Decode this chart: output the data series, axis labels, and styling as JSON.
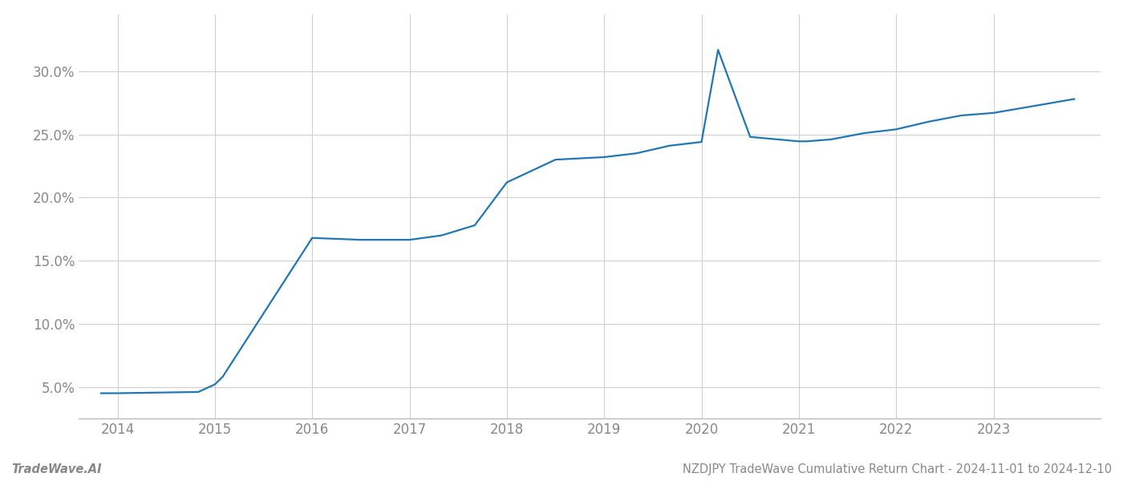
{
  "x_years": [
    2013.83,
    2014.0,
    2014.83,
    2015.0,
    2015.08,
    2016.0,
    2016.5,
    2017.0,
    2017.33,
    2017.67,
    2018.0,
    2018.5,
    2019.0,
    2019.33,
    2019.67,
    2020.0,
    2020.17,
    2020.5,
    2021.0,
    2021.08,
    2021.33,
    2021.67,
    2022.0,
    2022.33,
    2022.67,
    2023.0,
    2023.83
  ],
  "y_values": [
    4.5,
    4.5,
    4.6,
    5.2,
    5.8,
    16.8,
    16.65,
    16.65,
    17.0,
    17.8,
    21.2,
    23.0,
    23.2,
    23.5,
    24.1,
    24.4,
    31.7,
    24.8,
    24.45,
    24.45,
    24.6,
    25.1,
    25.4,
    26.0,
    26.5,
    26.7,
    27.8
  ],
  "line_color": "#1f77b4",
  "line_width": 1.6,
  "background_color": "#ffffff",
  "grid_color": "#d0d0d0",
  "ytick_values": [
    5.0,
    10.0,
    15.0,
    20.0,
    25.0,
    30.0
  ],
  "xtick_labels": [
    "2014",
    "2015",
    "2016",
    "2017",
    "2018",
    "2019",
    "2020",
    "2021",
    "2022",
    "2023"
  ],
  "xtick_values": [
    2014,
    2015,
    2016,
    2017,
    2018,
    2019,
    2020,
    2021,
    2022,
    2023
  ],
  "xlim": [
    2013.6,
    2024.1
  ],
  "ylim": [
    2.5,
    34.5
  ],
  "footer_left": "TradeWave.AI",
  "footer_right": "NZDJPY TradeWave Cumulative Return Chart - 2024-11-01 to 2024-12-10",
  "spine_color": "#bbbbbb",
  "label_color": "#888888",
  "footer_fontsize": 10.5,
  "tick_fontsize": 12
}
